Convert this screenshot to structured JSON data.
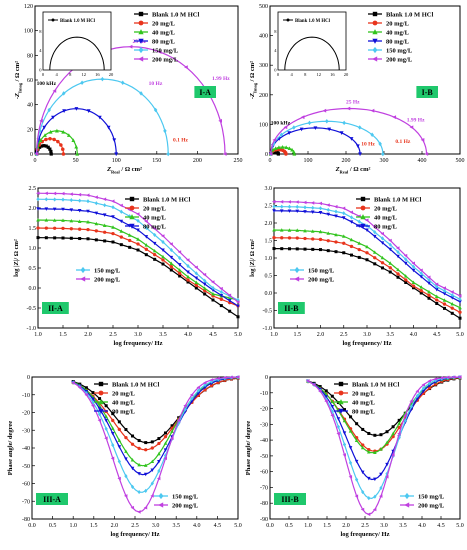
{
  "series_style": [
    {
      "color": "#000000",
      "marker": "square"
    },
    {
      "color": "#e8341c",
      "marker": "circle"
    },
    {
      "color": "#32c41e",
      "marker": "triangle-up"
    },
    {
      "color": "#1010d8",
      "marker": "triangle-down"
    },
    {
      "color": "#4cc8f0",
      "marker": "diamond"
    },
    {
      "color": "#c040e0",
      "marker": "triangle-left"
    }
  ],
  "panel_label_bg": "#1fc86c",
  "chart_data": [
    {
      "id": "I-A",
      "type": "line",
      "panel_label": "I-A",
      "xlabel_main": "Z",
      "xlabel_sub": "Real",
      "xlabel_unit": "/ Ω cm²",
      "ylabel_main": "-Z",
      "ylabel_sub": "Imag",
      "ylabel_unit": "/ Ω cm²",
      "xlim": [
        0,
        250
      ],
      "ylim": [
        0,
        120
      ],
      "xticks": [
        0,
        50,
        100,
        150,
        200,
        250
      ],
      "yticks": [
        0,
        20,
        40,
        60,
        80,
        100,
        120
      ],
      "series": [
        {
          "name": "Blank 1.0 M HCl",
          "rct": 18
        },
        {
          "name": "20 mg/L",
          "rct": 33
        },
        {
          "name": "40 mg/L",
          "rct": 50
        },
        {
          "name": "80 mg/L",
          "rct": 98
        },
        {
          "name": "150 mg/L",
          "rct": 162
        },
        {
          "name": "200 mg/L",
          "rct": 232
        }
      ],
      "annotations": [
        {
          "text": "25 Hz",
          "x": 120,
          "y": 90,
          "color": 5
        },
        {
          "text": "1.99 Hz",
          "x": 218,
          "y": 60,
          "color": 5
        },
        {
          "text": "10 Hz",
          "x": 140,
          "y": 56,
          "color": 5
        },
        {
          "text": "100 kHz",
          "x": 2,
          "y": 56,
          "color": 0
        },
        {
          "text": "0.1 Hz",
          "x": 170,
          "y": 10,
          "color": 1
        }
      ],
      "inset": {
        "legend": "Blank 1.0 M HCl",
        "xticks": [
          0,
          4,
          8,
          12,
          16,
          20
        ],
        "yticks": [
          0,
          4,
          8
        ],
        "rct": 16
      }
    },
    {
      "id": "I-B",
      "type": "line",
      "panel_label": "I-B",
      "xlabel_main": "Z",
      "xlabel_sub": "Real",
      "xlabel_unit": "/ Ω cm²",
      "ylabel_main": "-Z",
      "ylabel_sub": "Imag",
      "ylabel_unit": "/ Ω cm²",
      "xlim": [
        0,
        500
      ],
      "ylim": [
        0,
        500
      ],
      "xticks": [
        0,
        100,
        200,
        300,
        400,
        500
      ],
      "yticks": [
        0,
        100,
        200,
        300,
        400,
        500
      ],
      "series": [
        {
          "name": "Blank 1.0 M HCl",
          "rct": 20
        },
        {
          "name": "20 mg/L",
          "rct": 40
        },
        {
          "name": "40 mg/L",
          "rct": 62
        },
        {
          "name": "80 mg/L",
          "rct": 235
        },
        {
          "name": "150 mg/L",
          "rct": 295
        },
        {
          "name": "200 mg/L",
          "rct": 410
        }
      ],
      "annotations": [
        {
          "text": "25 Hz",
          "x": 200,
          "y": 170,
          "color": 5
        },
        {
          "text": "1.99 Hz",
          "x": 360,
          "y": 110,
          "color": 5
        },
        {
          "text": "100 kHz",
          "x": 2,
          "y": 100,
          "color": 0
        },
        {
          "text": "0.1 Hz",
          "x": 330,
          "y": 38,
          "color": 1
        },
        {
          "text": "10 Hz",
          "x": 240,
          "y": 28,
          "color": 1
        }
      ],
      "inset": {
        "legend": "Blank 1.0 M HCl",
        "xticks": [
          0,
          4,
          8,
          12,
          16,
          20
        ],
        "yticks": [
          0,
          4,
          8
        ],
        "rct": 16
      }
    },
    {
      "id": "II-A",
      "type": "line",
      "panel_label": "II-A",
      "xlabel": "log frequency/ Hz",
      "ylabel": "log |Z|/ Ω cm²",
      "xlim": [
        1.0,
        5.0
      ],
      "ylim": [
        -1.0,
        2.5
      ],
      "xticks": [
        1.0,
        1.5,
        2.0,
        2.5,
        3.0,
        3.5,
        4.0,
        4.5,
        5.0
      ],
      "yticks": [
        -1.0,
        -0.5,
        0.0,
        0.5,
        1.0,
        1.5,
        2.0,
        2.5
      ],
      "series": [
        {
          "name": "Blank 1.0 M HCl",
          "y": [
            1.26,
            1.25,
            1.23,
            1.15,
            0.95,
            0.6,
            0.15,
            -0.3,
            -0.72
          ]
        },
        {
          "name": "20 mg/L",
          "y": [
            1.5,
            1.49,
            1.46,
            1.36,
            1.1,
            0.7,
            0.2,
            -0.2,
            -0.45
          ]
        },
        {
          "name": "40 mg/L",
          "y": [
            1.7,
            1.69,
            1.65,
            1.52,
            1.22,
            0.78,
            0.28,
            -0.15,
            -0.3
          ]
        },
        {
          "name": "80 mg/L",
          "y": [
            1.98,
            1.97,
            1.92,
            1.78,
            1.45,
            0.95,
            0.4,
            -0.05,
            -0.45
          ]
        },
        {
          "name": "150 mg/L",
          "y": [
            2.22,
            2.21,
            2.17,
            2.02,
            1.68,
            1.15,
            0.55,
            0.0,
            -0.3
          ]
        },
        {
          "name": "200 mg/L",
          "y": [
            2.37,
            2.36,
            2.32,
            2.17,
            1.85,
            1.3,
            0.7,
            0.15,
            -0.35
          ]
        }
      ],
      "legend_split": 4
    },
    {
      "id": "II-B",
      "type": "line",
      "panel_label": "II-B",
      "xlabel": "log frequency/ Hz",
      "ylabel": "log |Z|/ Ω cm²",
      "xlim": [
        1.0,
        5.0
      ],
      "ylim": [
        -1.0,
        3.0
      ],
      "xticks": [
        1.0,
        1.5,
        2.0,
        2.5,
        3.0,
        3.5,
        4.0,
        4.5,
        5.0
      ],
      "yticks": [
        -1.0,
        -0.5,
        0.0,
        0.5,
        1.0,
        1.5,
        2.0,
        2.5,
        3.0
      ],
      "series": [
        {
          "name": "Blank 1.0 M HCl",
          "y": [
            1.27,
            1.26,
            1.24,
            1.15,
            0.95,
            0.6,
            0.15,
            -0.3,
            -0.72
          ]
        },
        {
          "name": "20 mg/L",
          "y": [
            1.58,
            1.57,
            1.53,
            1.42,
            1.15,
            0.72,
            0.2,
            -0.2,
            -0.55
          ]
        },
        {
          "name": "40 mg/L",
          "y": [
            1.8,
            1.79,
            1.75,
            1.62,
            1.32,
            0.85,
            0.3,
            -0.1,
            -0.42
          ]
        },
        {
          "name": "80 mg/L",
          "y": [
            2.35,
            2.34,
            2.3,
            2.15,
            1.8,
            1.25,
            0.65,
            0.1,
            -0.25
          ]
        },
        {
          "name": "150 mg/L",
          "y": [
            2.47,
            2.46,
            2.42,
            2.28,
            1.92,
            1.38,
            0.75,
            0.18,
            -0.18
          ]
        },
        {
          "name": "200 mg/L",
          "y": [
            2.61,
            2.6,
            2.56,
            2.42,
            2.08,
            1.5,
            0.85,
            0.25,
            -0.08
          ]
        }
      ],
      "legend_split": 4
    },
    {
      "id": "III-A",
      "type": "line",
      "panel_label": "III-A",
      "xlabel": "log frequency/ Hz",
      "ylabel": "Phase angle/ degree",
      "xlim": [
        0.0,
        5.0
      ],
      "ylim": [
        -80,
        0
      ],
      "xticks": [
        0.0,
        0.5,
        1.0,
        1.5,
        2.0,
        2.5,
        3.0,
        3.5,
        4.0,
        4.5,
        5.0
      ],
      "yticks": [
        -80,
        -70,
        -60,
        -50,
        -40,
        -30,
        -20,
        -10,
        0
      ],
      "series": [
        {
          "name": "Blank 1.0 M HCl",
          "min": -37,
          "center": 2.8,
          "width": 1.1
        },
        {
          "name": "20 mg/L",
          "min": -41,
          "center": 2.75,
          "width": 1.1
        },
        {
          "name": "40 mg/L",
          "min": -50,
          "center": 2.7,
          "width": 1.0
        },
        {
          "name": "80 mg/L",
          "min": -55,
          "center": 2.7,
          "width": 1.0
        },
        {
          "name": "150 mg/L",
          "min": -65,
          "center": 2.65,
          "width": 0.95
        },
        {
          "name": "200 mg/L",
          "min": -76,
          "center": 2.6,
          "width": 0.9
        }
      ],
      "legend_split": 4
    },
    {
      "id": "III-B",
      "type": "line",
      "panel_label": "III-B",
      "xlabel": "log frequency/ Hz",
      "ylabel": "Phase angle/ degree",
      "xlim": [
        0.0,
        5.0
      ],
      "ylim": [
        -90,
        0
      ],
      "xticks": [
        0.0,
        0.5,
        1.0,
        1.5,
        2.0,
        2.5,
        3.0,
        3.5,
        4.0,
        4.5,
        5.0
      ],
      "yticks": [
        -90,
        -80,
        -70,
        -60,
        -50,
        -40,
        -30,
        -20,
        -10,
        0
      ],
      "series": [
        {
          "name": "Blank 1.0 M HCl",
          "min": -37,
          "center": 2.8,
          "width": 1.1
        },
        {
          "name": "20 mg/L",
          "min": -47,
          "center": 2.75,
          "width": 1.05
        },
        {
          "name": "40 mg/L",
          "min": -48,
          "center": 2.7,
          "width": 1.0
        },
        {
          "name": "80 mg/L",
          "min": -65,
          "center": 2.7,
          "width": 0.95
        },
        {
          "name": "150 mg/L",
          "min": -77,
          "center": 2.65,
          "width": 0.9
        },
        {
          "name": "200 mg/L",
          "min": -87,
          "center": 2.6,
          "width": 0.85
        }
      ],
      "legend_split": 4
    }
  ]
}
